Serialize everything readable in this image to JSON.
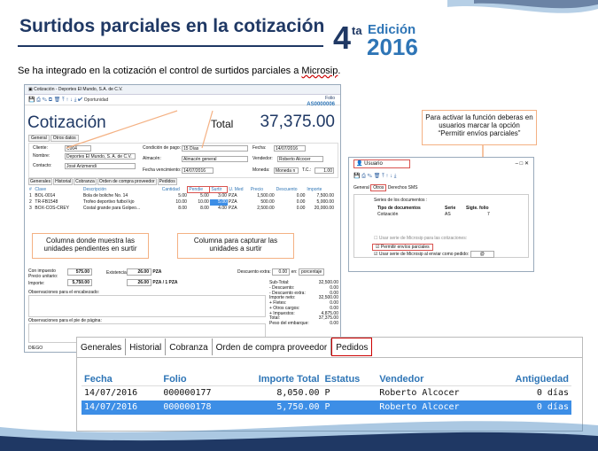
{
  "slide": {
    "title": "Surtidos parciales en la cotización",
    "lead_pre": "Se ha integrado en la cotización el control de surtidos parciales a ",
    "lead_link": "Microsip",
    "badge": {
      "number": "4",
      "suffix": "ta",
      "edition": "Edición",
      "year": "2016"
    }
  },
  "window": {
    "titlebar": "Cotización - Deportes El Mundo, S.A. de C.V.",
    "oportunidad": "Oportunidad",
    "folio_label": "Folio",
    "folio": "AS0000006",
    "heading": "Cotización",
    "total_label": "Total",
    "total": "37,375.00",
    "tabs": [
      "General",
      "Otros datos"
    ],
    "form": {
      "cliente_l": "Cliente:",
      "cliente": "C004",
      "nombre_l": "Nombre:",
      "nombre": "Deportes El Mundo, S. A. de C.V.",
      "contacto_l": "Contacto:",
      "contacto": "José Arizmendi",
      "cond_l": "Condición de pago:",
      "cond": "15 Días",
      "almacen_l": "Almacén:",
      "almacen": "Almacén general",
      "fvence_l": "Fecha vencimiento:",
      "fvence": "14/07/2016",
      "fecha_l": "Fecha:",
      "fecha": "14/07/2016",
      "vendedor_l": "Vendedor:",
      "vendedor": "Roberto Alcocer",
      "moneda_l": "Moneda:",
      "moneda": "Moneda n",
      "tc_l": "T.C.:",
      "tc": "1.00"
    },
    "subtabs": [
      "Generales",
      "Historial",
      "Cobranza",
      "Orden de compra proveedor",
      "Pedidos"
    ],
    "grid_headers": [
      "#",
      "Clave",
      "Descripción",
      "Cantidad",
      "Pendie",
      "Surtir",
      "U. Med",
      "Precio",
      "Descuento",
      "Importe"
    ],
    "rows": [
      [
        "1",
        "BOL-0014",
        "Bola de boliche No. 14",
        "5.00",
        "5.00",
        "3.00",
        "PZA",
        "1,500.00",
        "0.00",
        "7,500.00"
      ],
      [
        "2",
        "TR-FB1548",
        "Trofeo deportivo futbol kjo",
        "10.00",
        "10.00",
        "5.00",
        "PZA",
        "500.00",
        "0.00",
        "5,000.00"
      ],
      [
        "3",
        "BOX-COS-CREY",
        "Costal grande para Golpeo...",
        "8.00",
        "8.00",
        "4.00",
        "PZA",
        "2,500.00",
        "0.00",
        "20,000.00"
      ]
    ],
    "callout_left": "Columna donde muestra las unidades pendientes en surtir",
    "callout_mid": "Columna para capturar las unidades a surtir",
    "footer": {
      "con_imp": "Con impuesto",
      "precio_u": "Precio unitario:",
      "precio_v": "575.00",
      "exist_l": "Existencia:",
      "exist_v": "26.00",
      "exist_u": "PZA",
      "importe_l": "Importe:",
      "importe_v": "5,750.00",
      "imp2": "26.00",
      "imp2_u": "PZA / 1 PZA",
      "desc_extra_l": "Descuento extra:",
      "desc_extra_v": "0.00",
      "en": "en:",
      "porcentaje": "porcentaje",
      "obs_enc": "Observaciones para el encabezado:",
      "obs_pie": "Observaciones para el pie de página:",
      "user": "DIEGO",
      "summary": [
        [
          "Sub-Total:",
          "32,500.00"
        ],
        [
          "- Descuento:",
          "0.00"
        ],
        [
          "- Descuento extra:",
          "0.00"
        ],
        [
          "Importe neto:",
          "32,500.00"
        ],
        [
          "+ Fletes:",
          "0.00"
        ],
        [
          "+ Otros cargos:",
          "0.00"
        ],
        [
          "+ Impuestos:",
          "4,875.00"
        ],
        [
          "Total:",
          "37,375.00"
        ],
        [
          "Peso del embarque:",
          "0.00"
        ]
      ]
    }
  },
  "note": "Para activar la función deberas en usuarios marcar la opción “Permitir envíos parciales”",
  "usuario": {
    "title": "Usuario",
    "tabs": [
      "General",
      "Otros",
      "Derechos",
      "SMS"
    ],
    "series_l": "Series de los documentos :",
    "cols": [
      "Tipo de documentos",
      "Serie",
      "Sigte. folio"
    ],
    "row": [
      "Cotización",
      "AS",
      "7"
    ],
    "chk1": "Usar serie de Microsip para las cotizaciones:",
    "chk2": "Permitir envíos parciales",
    "chk3": "Usar serie de Microsip al enviar como pedido:",
    "chk3_val": "@"
  },
  "bigtabs": [
    "Generales",
    "Historial",
    "Cobranza",
    "Orden de compra proveedor",
    "Pedidos"
  ],
  "pedidos": {
    "headers": [
      "Fecha",
      "Folio",
      "Importe Total",
      "Estatus",
      "Vendedor",
      "Antigüedad"
    ],
    "rows": [
      [
        "14/07/2016",
        "000000177",
        "8,050.00",
        "P",
        "Roberto Alcocer",
        "0 días"
      ],
      [
        "14/07/2016",
        "000000178",
        "5,750.00",
        "P",
        "Roberto Alcocer",
        "0 días"
      ]
    ]
  },
  "colors": {
    "navy": "#1f3864",
    "blue": "#2e75b6",
    "orange": "#f4b183",
    "select": "#3d8ee6"
  }
}
